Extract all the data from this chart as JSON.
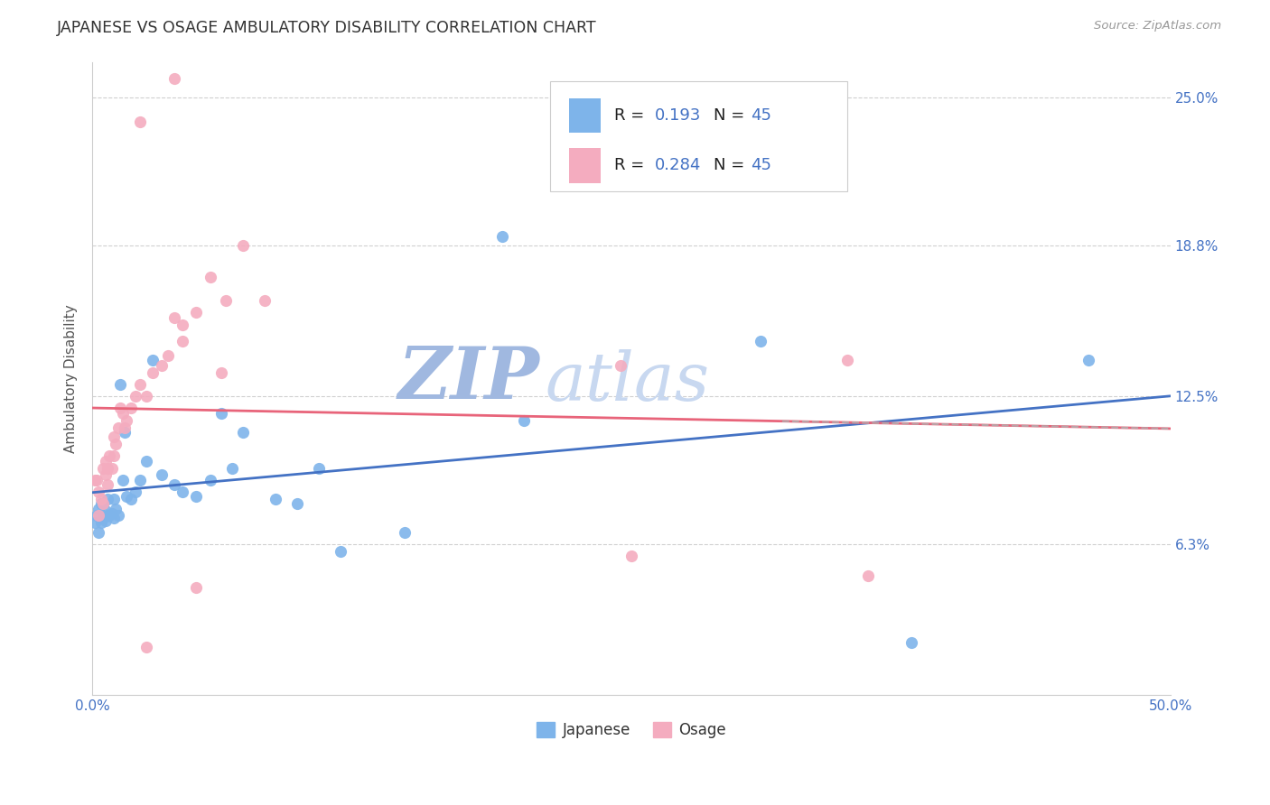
{
  "title": "JAPANESE VS OSAGE AMBULATORY DISABILITY CORRELATION CHART",
  "source": "Source: ZipAtlas.com",
  "ylabel": "Ambulatory Disability",
  "ytick_labels": [
    "6.3%",
    "12.5%",
    "18.8%",
    "25.0%"
  ],
  "ytick_values": [
    0.063,
    0.125,
    0.188,
    0.25
  ],
  "xlim": [
    0.0,
    0.5
  ],
  "ylim": [
    0.0,
    0.265
  ],
  "legend_r_japanese": "0.193",
  "legend_n_japanese": "45",
  "legend_r_osage": "0.284",
  "legend_n_osage": "45",
  "japanese_color": "#7EB4EA",
  "osage_color": "#F4ACBF",
  "trend_japanese_color": "#4472C4",
  "trend_osage_color": "#E8647A",
  "trend_dashed_color": "#B0B0B0",
  "background_color": "#FFFFFF",
  "watermark_zip_color": "#A0B8E0",
  "watermark_atlas_color": "#C8D8F0",
  "japanese_x": [
    0.001,
    0.002,
    0.003,
    0.003,
    0.004,
    0.004,
    0.005,
    0.005,
    0.006,
    0.006,
    0.007,
    0.007,
    0.008,
    0.009,
    0.01,
    0.01,
    0.011,
    0.012,
    0.013,
    0.014,
    0.015,
    0.016,
    0.018,
    0.02,
    0.022,
    0.025,
    0.028,
    0.032,
    0.038,
    0.042,
    0.048,
    0.055,
    0.06,
    0.065,
    0.07,
    0.085,
    0.095,
    0.105,
    0.115,
    0.145,
    0.19,
    0.2,
    0.31,
    0.38,
    0.462
  ],
  "japanese_y": [
    0.072,
    0.075,
    0.068,
    0.078,
    0.072,
    0.08,
    0.074,
    0.08,
    0.073,
    0.077,
    0.075,
    0.082,
    0.075,
    0.076,
    0.074,
    0.082,
    0.078,
    0.075,
    0.13,
    0.09,
    0.11,
    0.083,
    0.082,
    0.085,
    0.09,
    0.098,
    0.14,
    0.092,
    0.088,
    0.085,
    0.083,
    0.09,
    0.118,
    0.095,
    0.11,
    0.082,
    0.08,
    0.095,
    0.06,
    0.068,
    0.192,
    0.115,
    0.148,
    0.022,
    0.14
  ],
  "osage_x": [
    0.001,
    0.002,
    0.003,
    0.003,
    0.004,
    0.005,
    0.005,
    0.006,
    0.006,
    0.007,
    0.007,
    0.008,
    0.009,
    0.01,
    0.01,
    0.011,
    0.012,
    0.013,
    0.014,
    0.015,
    0.016,
    0.018,
    0.02,
    0.022,
    0.025,
    0.028,
    0.032,
    0.035,
    0.038,
    0.042,
    0.048,
    0.055,
    0.06,
    0.062,
    0.07,
    0.08,
    0.022,
    0.35,
    0.36,
    0.025,
    0.245,
    0.25,
    0.038,
    0.042,
    0.048
  ],
  "osage_y": [
    0.09,
    0.09,
    0.075,
    0.085,
    0.082,
    0.08,
    0.095,
    0.092,
    0.098,
    0.088,
    0.095,
    0.1,
    0.095,
    0.1,
    0.108,
    0.105,
    0.112,
    0.12,
    0.118,
    0.112,
    0.115,
    0.12,
    0.125,
    0.13,
    0.125,
    0.135,
    0.138,
    0.142,
    0.158,
    0.148,
    0.16,
    0.175,
    0.135,
    0.165,
    0.188,
    0.165,
    0.24,
    0.14,
    0.05,
    0.02,
    0.138,
    0.058,
    0.258,
    0.155,
    0.045
  ]
}
